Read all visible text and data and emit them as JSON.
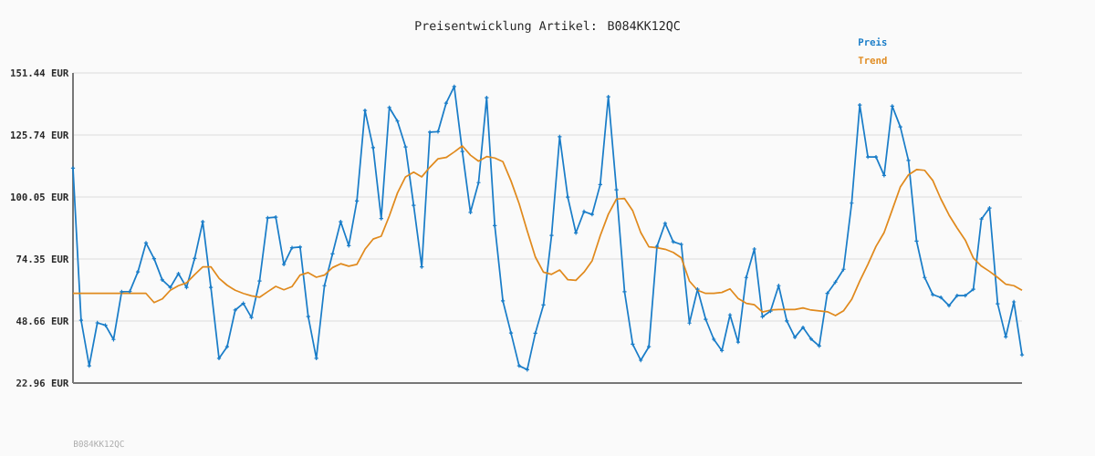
{
  "chart_data": {
    "type": "line",
    "title": "Preisentwicklung Artikel: B084KK12QC",
    "annotations": [
      "B084KK12QC"
    ],
    "categories": [
      null,
      null,
      null,
      null,
      null,
      null,
      null,
      null,
      null,
      null,
      null,
      null,
      null,
      null,
      null,
      null,
      null,
      null,
      null,
      null,
      null,
      null,
      null,
      null,
      null,
      null,
      null,
      null,
      null,
      null,
      null,
      null,
      null,
      null,
      null,
      null,
      null,
      null,
      null,
      null,
      null,
      null,
      null,
      null,
      null,
      null,
      null,
      null,
      null,
      null,
      null,
      null,
      null,
      null,
      null,
      null,
      null,
      null,
      null,
      null,
      null,
      null,
      null,
      null,
      null,
      null,
      null,
      null,
      null,
      null,
      null,
      null,
      null,
      null,
      null,
      null,
      null,
      null,
      null,
      null,
      null,
      null,
      null,
      null,
      null,
      null,
      null,
      null,
      null,
      null,
      null,
      null,
      null,
      null,
      null,
      null,
      null,
      null,
      null,
      null,
      null,
      null,
      null,
      null,
      null,
      null,
      null,
      null,
      null,
      null,
      null,
      null,
      null,
      null,
      null,
      null,
      null,
      null
    ],
    "series": [
      {
        "name": "Preis",
        "color": "#1a7dc8",
        "marker": "cross",
        "values": [
          112.0,
          49.0,
          30.1,
          47.9,
          46.9,
          41.0,
          60.8,
          60.9,
          69.0,
          81.0,
          74.5,
          65.7,
          62.6,
          68.3,
          62.6,
          74.6,
          89.8,
          62.6,
          33.2,
          38.0,
          53.2,
          56.0,
          50.1,
          65.2,
          91.4,
          91.7,
          72.1,
          79.0,
          79.3,
          50.5,
          33.2,
          63.3,
          76.5,
          89.8,
          79.9,
          98.4,
          135.9,
          120.5,
          91.1,
          137.1,
          131.5,
          120.8,
          96.6,
          71.1,
          126.9,
          127.1,
          138.9,
          145.8,
          118.9,
          93.7,
          106.0,
          141.2,
          88.2,
          57.0,
          43.7,
          30.1,
          28.5,
          43.6,
          55.3,
          84.1,
          125.0,
          100.0,
          85.2,
          94.0,
          92.8,
          105.2,
          141.6,
          103.0,
          60.8,
          39.1,
          32.4,
          38.0,
          79.6,
          89.1,
          81.5,
          80.4,
          47.8,
          61.8,
          49.4,
          41.1,
          36.4,
          51.2,
          39.9,
          66.7,
          78.5,
          50.4,
          52.8,
          63.3,
          48.7,
          41.9,
          46.0,
          41.2,
          38.3,
          60.1,
          64.8,
          70.1,
          97.5,
          138.2,
          116.6,
          116.6,
          109.0,
          137.7,
          129.1,
          115.2,
          81.8,
          66.7,
          59.6,
          58.4,
          55.0,
          59.2,
          59.2,
          61.8,
          90.9,
          95.5,
          55.8,
          42.1,
          56.6,
          34.6
        ]
      },
      {
        "name": "Trend",
        "color": "#e08a1e",
        "marker": "none",
        "values": [
          60.1,
          60.1,
          60.1,
          60.1,
          60.1,
          60.1,
          60.1,
          60.1,
          60.1,
          60.1,
          56.3,
          57.8,
          61.4,
          63.3,
          64.5,
          67.9,
          71.1,
          71.1,
          66.4,
          63.5,
          61.4,
          60.1,
          59.1,
          58.5,
          60.8,
          63.0,
          61.6,
          62.9,
          67.7,
          68.7,
          66.8,
          67.7,
          70.8,
          72.4,
          71.4,
          72.1,
          78.4,
          82.6,
          83.8,
          92.2,
          101.7,
          108.4,
          110.3,
          108.4,
          112.4,
          115.9,
          116.4,
          118.7,
          121.2,
          117.4,
          114.9,
          116.8,
          116.2,
          114.7,
          106.7,
          97.3,
          86.0,
          75.2,
          68.9,
          68.0,
          69.8,
          65.8,
          65.5,
          68.9,
          73.6,
          84.0,
          92.9,
          99.2,
          99.4,
          94.4,
          85.3,
          79.4,
          79.0,
          78.4,
          77.1,
          74.8,
          65.2,
          61.4,
          60.1,
          60.1,
          60.5,
          62.0,
          58.0,
          56.0,
          55.4,
          52.4,
          53.2,
          53.4,
          53.4,
          53.4,
          54.1,
          53.2,
          52.9,
          52.5,
          50.9,
          52.9,
          57.6,
          65.2,
          72.1,
          79.6,
          85.3,
          94.7,
          104.2,
          109.2,
          111.4,
          111.1,
          106.9,
          99.2,
          92.6,
          87.2,
          82.2,
          74.8,
          71.4,
          69.2,
          66.7,
          63.9,
          63.3,
          61.4
        ]
      }
    ],
    "ylim": [
      22.96,
      151.44
    ],
    "yticks": [
      {
        "value": 22.96,
        "label": "22.96 EUR"
      },
      {
        "value": 48.66,
        "label": "48.66 EUR"
      },
      {
        "value": 74.35,
        "label": "74.35 EUR"
      },
      {
        "value": 100.05,
        "label": "100.05 EUR"
      },
      {
        "value": 125.74,
        "label": "125.74 EUR"
      },
      {
        "value": 151.44,
        "label": "151.44 EUR"
      }
    ],
    "grid": "y",
    "legend": "top right",
    "line_style": "solid"
  }
}
